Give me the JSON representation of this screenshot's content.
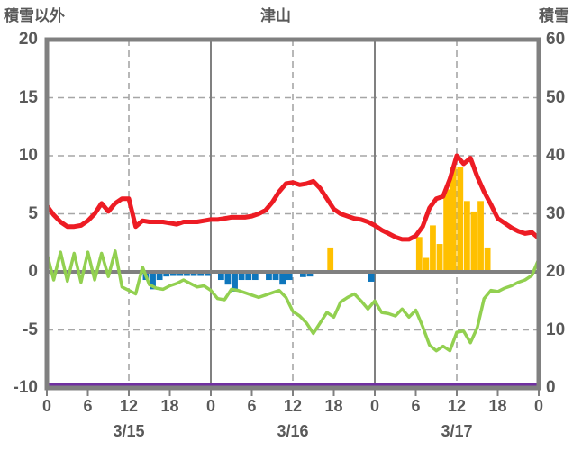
{
  "header": {
    "left_axis_title": "積雪以外",
    "chart_title": "津山",
    "right_axis_title": "積雪"
  },
  "chart_data": {
    "type": "combo",
    "title": "津山",
    "x": {
      "unit": "hour",
      "range": [
        0,
        72
      ],
      "tick_interval_hours": 6,
      "hour_tick_labels": [
        "0",
        "6",
        "12",
        "18",
        "0",
        "6",
        "12",
        "18",
        "0",
        "6",
        "12",
        "18",
        "0"
      ],
      "day_labels": [
        {
          "hour": 12,
          "label": "3/15"
        },
        {
          "hour": 36,
          "label": "3/16"
        },
        {
          "hour": 60,
          "label": "3/17"
        }
      ]
    },
    "left_axis": {
      "title": "積雪以外",
      "min": -10,
      "max": 20,
      "ticks": [
        20,
        15,
        10,
        5,
        0,
        -5,
        -10
      ]
    },
    "right_axis": {
      "title": "積雪",
      "min": 0,
      "max": 60,
      "ticks": [
        60,
        50,
        40,
        30,
        20,
        10,
        0
      ]
    },
    "grid": {
      "dashed_h_values": [
        15,
        10,
        5,
        -5
      ],
      "dashed_v_hours": [
        12,
        36,
        60
      ],
      "solid_v_hours": [
        24,
        48
      ],
      "zero_line_value": 0
    },
    "colors": {
      "frame": "#808080",
      "grid": "#a6a6a6",
      "text": "#595959",
      "background": "#ffffff"
    },
    "series": [
      {
        "name": "red-line",
        "type": "line",
        "axis": "left",
        "color": "#ed1c24",
        "stroke_width": 5,
        "x_hours_start": 0,
        "x_hours_step": 1,
        "values": [
          5.7,
          4.9,
          4.3,
          3.9,
          3.9,
          4.0,
          4.4,
          5.0,
          5.9,
          5.2,
          5.9,
          6.3,
          6.3,
          3.9,
          4.4,
          4.3,
          4.3,
          4.3,
          4.2,
          4.1,
          4.3,
          4.3,
          4.3,
          4.4,
          4.5,
          4.5,
          4.6,
          4.7,
          4.7,
          4.7,
          4.8,
          5.0,
          5.3,
          6.0,
          6.9,
          7.6,
          7.7,
          7.5,
          7.6,
          7.8,
          7.2,
          6.3,
          5.4,
          5.0,
          4.8,
          4.6,
          4.5,
          4.3,
          4.0,
          3.6,
          3.3,
          3.0,
          2.8,
          2.8,
          3.1,
          3.9,
          5.5,
          6.3,
          6.5,
          8.0,
          10.0,
          9.3,
          9.8,
          8.2,
          6.9,
          5.8,
          4.6,
          4.2,
          3.8,
          3.5,
          3.3,
          3.4,
          2.9
        ]
      },
      {
        "name": "green-line",
        "type": "line",
        "axis": "left",
        "color": "#92d050",
        "stroke_width": 3.5,
        "x_hours_start": 0,
        "x_hours_step": 1,
        "values": [
          1.6,
          -0.7,
          1.7,
          -0.8,
          1.6,
          -0.9,
          1.7,
          -0.7,
          1.6,
          -0.4,
          1.8,
          -1.3,
          -1.6,
          -1.9,
          0.4,
          -1.1,
          -1.4,
          -1.5,
          -1.2,
          -1.0,
          -0.7,
          -1.0,
          -1.3,
          -1.2,
          -1.6,
          -2.3,
          -2.4,
          -1.5,
          -1.6,
          -1.8,
          -2.0,
          -2.2,
          -2.0,
          -1.8,
          -1.6,
          -2.2,
          -3.4,
          -3.8,
          -4.4,
          -5.3,
          -4.4,
          -3.5,
          -3.9,
          -2.6,
          -2.2,
          -1.9,
          -2.5,
          -3.2,
          -2.5,
          -3.5,
          -3.6,
          -3.8,
          -3.2,
          -3.9,
          -3.3,
          -4.7,
          -6.3,
          -6.8,
          -6.4,
          -6.8,
          -5.2,
          -5.1,
          -6.1,
          -4.8,
          -2.3,
          -1.6,
          -1.7,
          -1.4,
          -1.2,
          -0.9,
          -0.7,
          -0.3,
          1.1
        ]
      },
      {
        "name": "blue-bars",
        "type": "bar",
        "axis": "left",
        "color": "#0e76bc",
        "points": [
          {
            "hour": 14,
            "value": -0.7
          },
          {
            "hour": 15,
            "value": -1.5
          },
          {
            "hour": 16,
            "value": -0.7
          },
          {
            "hour": 17,
            "value": -0.4
          },
          {
            "hour": 18,
            "value": -0.35
          },
          {
            "hour": 19,
            "value": -0.35
          },
          {
            "hour": 20,
            "value": -0.35
          },
          {
            "hour": 21,
            "value": -0.35
          },
          {
            "hour": 22,
            "value": -0.35
          },
          {
            "hour": 23,
            "value": -0.35
          },
          {
            "hour": 25,
            "value": -0.7
          },
          {
            "hour": 26,
            "value": -1.1
          },
          {
            "hour": 27,
            "value": -1.7
          },
          {
            "hour": 28,
            "value": -0.7
          },
          {
            "hour": 29,
            "value": -0.7
          },
          {
            "hour": 30,
            "value": -0.7
          },
          {
            "hour": 32,
            "value": -0.7
          },
          {
            "hour": 33,
            "value": -0.7
          },
          {
            "hour": 34,
            "value": -1.1
          },
          {
            "hour": 35,
            "value": -0.7
          },
          {
            "hour": 37,
            "value": -0.45
          },
          {
            "hour": 38,
            "value": -0.4
          },
          {
            "hour": 47,
            "value": -0.85
          }
        ]
      },
      {
        "name": "orange-bars",
        "type": "bar",
        "axis": "left",
        "color": "#ffc000",
        "points": [
          {
            "hour": 41,
            "value": 2.1
          },
          {
            "hour": 54,
            "value": 3.0
          },
          {
            "hour": 55,
            "value": 1.2
          },
          {
            "hour": 56,
            "value": 4.0
          },
          {
            "hour": 57,
            "value": 2.4
          },
          {
            "hour": 58,
            "value": 7.1
          },
          {
            "hour": 59,
            "value": 9.0
          },
          {
            "hour": 60,
            "value": 9.0
          },
          {
            "hour": 61,
            "value": 6.1
          },
          {
            "hour": 62,
            "value": 5.2
          },
          {
            "hour": 63,
            "value": 6.1
          },
          {
            "hour": 64,
            "value": 2.1
          }
        ]
      },
      {
        "name": "purple-line",
        "type": "line",
        "axis": "right",
        "color": "#7030a0",
        "stroke_width": 3.5,
        "constant": 0
      }
    ]
  }
}
